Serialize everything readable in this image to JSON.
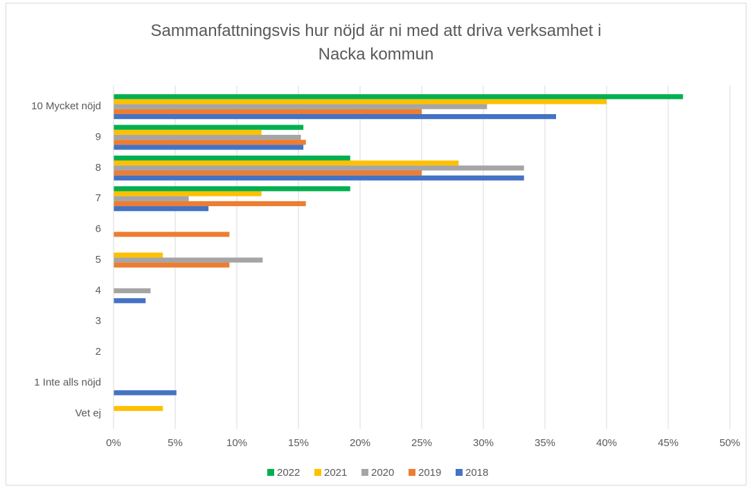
{
  "chart_data": {
    "type": "barh",
    "title": "Sammanfattningsvis hur nöjd är ni med att driva verksamhet i Nacka kommun",
    "categories": [
      "10 Mycket nöjd",
      "9",
      "8",
      "7",
      "6",
      "5",
      "4",
      "3",
      "2",
      "1 Inte alls nöjd",
      "Vet ej"
    ],
    "series": [
      {
        "name": "2022",
        "color": "#00b050",
        "values": [
          46.2,
          15.4,
          19.2,
          19.2,
          0,
          0,
          0,
          0,
          0,
          0,
          0
        ]
      },
      {
        "name": "2021",
        "color": "#ffc000",
        "values": [
          40,
          12,
          28,
          12,
          0,
          4,
          0,
          0,
          0,
          0,
          4
        ]
      },
      {
        "name": "2020",
        "color": "#a5a5a5",
        "values": [
          30.3,
          15.2,
          33.3,
          6.1,
          0,
          12.1,
          3,
          0,
          0,
          0,
          0
        ]
      },
      {
        "name": "2019",
        "color": "#ed7d31",
        "values": [
          25,
          15.6,
          25,
          15.6,
          9.4,
          9.4,
          0,
          0,
          0,
          0,
          0
        ]
      },
      {
        "name": "2018",
        "color": "#4472c4",
        "values": [
          35.9,
          15.4,
          33.3,
          7.7,
          0,
          0,
          2.6,
          0,
          0,
          5.1,
          0
        ]
      }
    ],
    "xlim": [
      0,
      50
    ],
    "xticks": [
      {
        "value": 0,
        "label": "0%"
      },
      {
        "value": 5,
        "label": "5%"
      },
      {
        "value": 10,
        "label": "10%"
      },
      {
        "value": 15,
        "label": "15%"
      },
      {
        "value": 20,
        "label": "20%"
      },
      {
        "value": 25,
        "label": "25%"
      },
      {
        "value": 30,
        "label": "30%"
      },
      {
        "value": 35,
        "label": "35%"
      },
      {
        "value": 40,
        "label": "40%"
      },
      {
        "value": 45,
        "label": "45%"
      },
      {
        "value": 50,
        "label": "50%"
      }
    ],
    "grid": true,
    "legend": "bottom"
  }
}
